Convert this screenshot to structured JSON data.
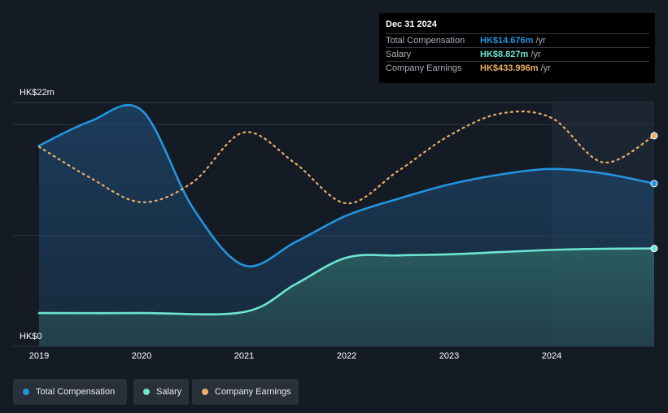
{
  "tooltip": {
    "date": "Dec 31 2024",
    "rows": [
      {
        "label": "Total Compensation",
        "value": "HK$14.676m",
        "unit": " /yr"
      },
      {
        "label": "Salary",
        "value": "HK$8.827m",
        "unit": " /yr"
      },
      {
        "label": "Company Earnings",
        "value": "HK$433.996m",
        "unit": " /yr"
      }
    ]
  },
  "legend": {
    "items": [
      {
        "label": "Total Compensation",
        "color": "#2394df"
      },
      {
        "label": "Salary",
        "color": "#6ee6d2"
      },
      {
        "label": "Company Earnings",
        "color": "#e8b06a"
      }
    ]
  },
  "chart_data": {
    "type": "line",
    "y_axis_labels": [
      "HK$22m",
      "HK$0"
    ],
    "x_tick_labels": [
      "2019",
      "2020",
      "2021",
      "2022",
      "2023",
      "2024"
    ],
    "ylim": [
      0,
      22
    ],
    "xlim": [
      2019,
      2025
    ],
    "series": [
      {
        "name": "Total Compensation",
        "color": "#2394df",
        "points": [
          [
            2019.0,
            18.1
          ],
          [
            2019.5,
            20.3
          ],
          [
            2020.0,
            21.3
          ],
          [
            2020.5,
            12.5
          ],
          [
            2021.0,
            7.3
          ],
          [
            2021.5,
            9.4
          ],
          [
            2022.0,
            11.8
          ],
          [
            2022.5,
            13.3
          ],
          [
            2023.0,
            14.6
          ],
          [
            2023.5,
            15.5
          ],
          [
            2024.0,
            16.0
          ],
          [
            2024.5,
            15.6
          ],
          [
            2025.0,
            14.676
          ]
        ]
      },
      {
        "name": "Salary",
        "color": "#6ee6d2",
        "points": [
          [
            2019.0,
            3.0
          ],
          [
            2020.0,
            3.0
          ],
          [
            2021.0,
            3.1
          ],
          [
            2021.5,
            5.6
          ],
          [
            2022.0,
            8.0
          ],
          [
            2022.5,
            8.2
          ],
          [
            2023.0,
            8.3
          ],
          [
            2023.5,
            8.5
          ],
          [
            2024.0,
            8.7
          ],
          [
            2024.5,
            8.8
          ],
          [
            2025.0,
            8.827
          ]
        ]
      },
      {
        "name": "Company Earnings",
        "color": "#e8b06a",
        "axis": "secondary",
        "points": [
          [
            2019.0,
            18.0
          ],
          [
            2019.5,
            15.2
          ],
          [
            2020.0,
            13.0
          ],
          [
            2020.5,
            14.8
          ],
          [
            2021.0,
            19.3
          ],
          [
            2021.5,
            16.5
          ],
          [
            2022.0,
            12.9
          ],
          [
            2022.5,
            15.8
          ],
          [
            2023.0,
            19.0
          ],
          [
            2023.5,
            21.0
          ],
          [
            2024.0,
            20.6
          ],
          [
            2024.5,
            16.6
          ],
          [
            2025.0,
            19.0
          ]
        ]
      }
    ],
    "highlight_from": 2024.0,
    "grid": true,
    "legend_position": "bottom-left"
  }
}
